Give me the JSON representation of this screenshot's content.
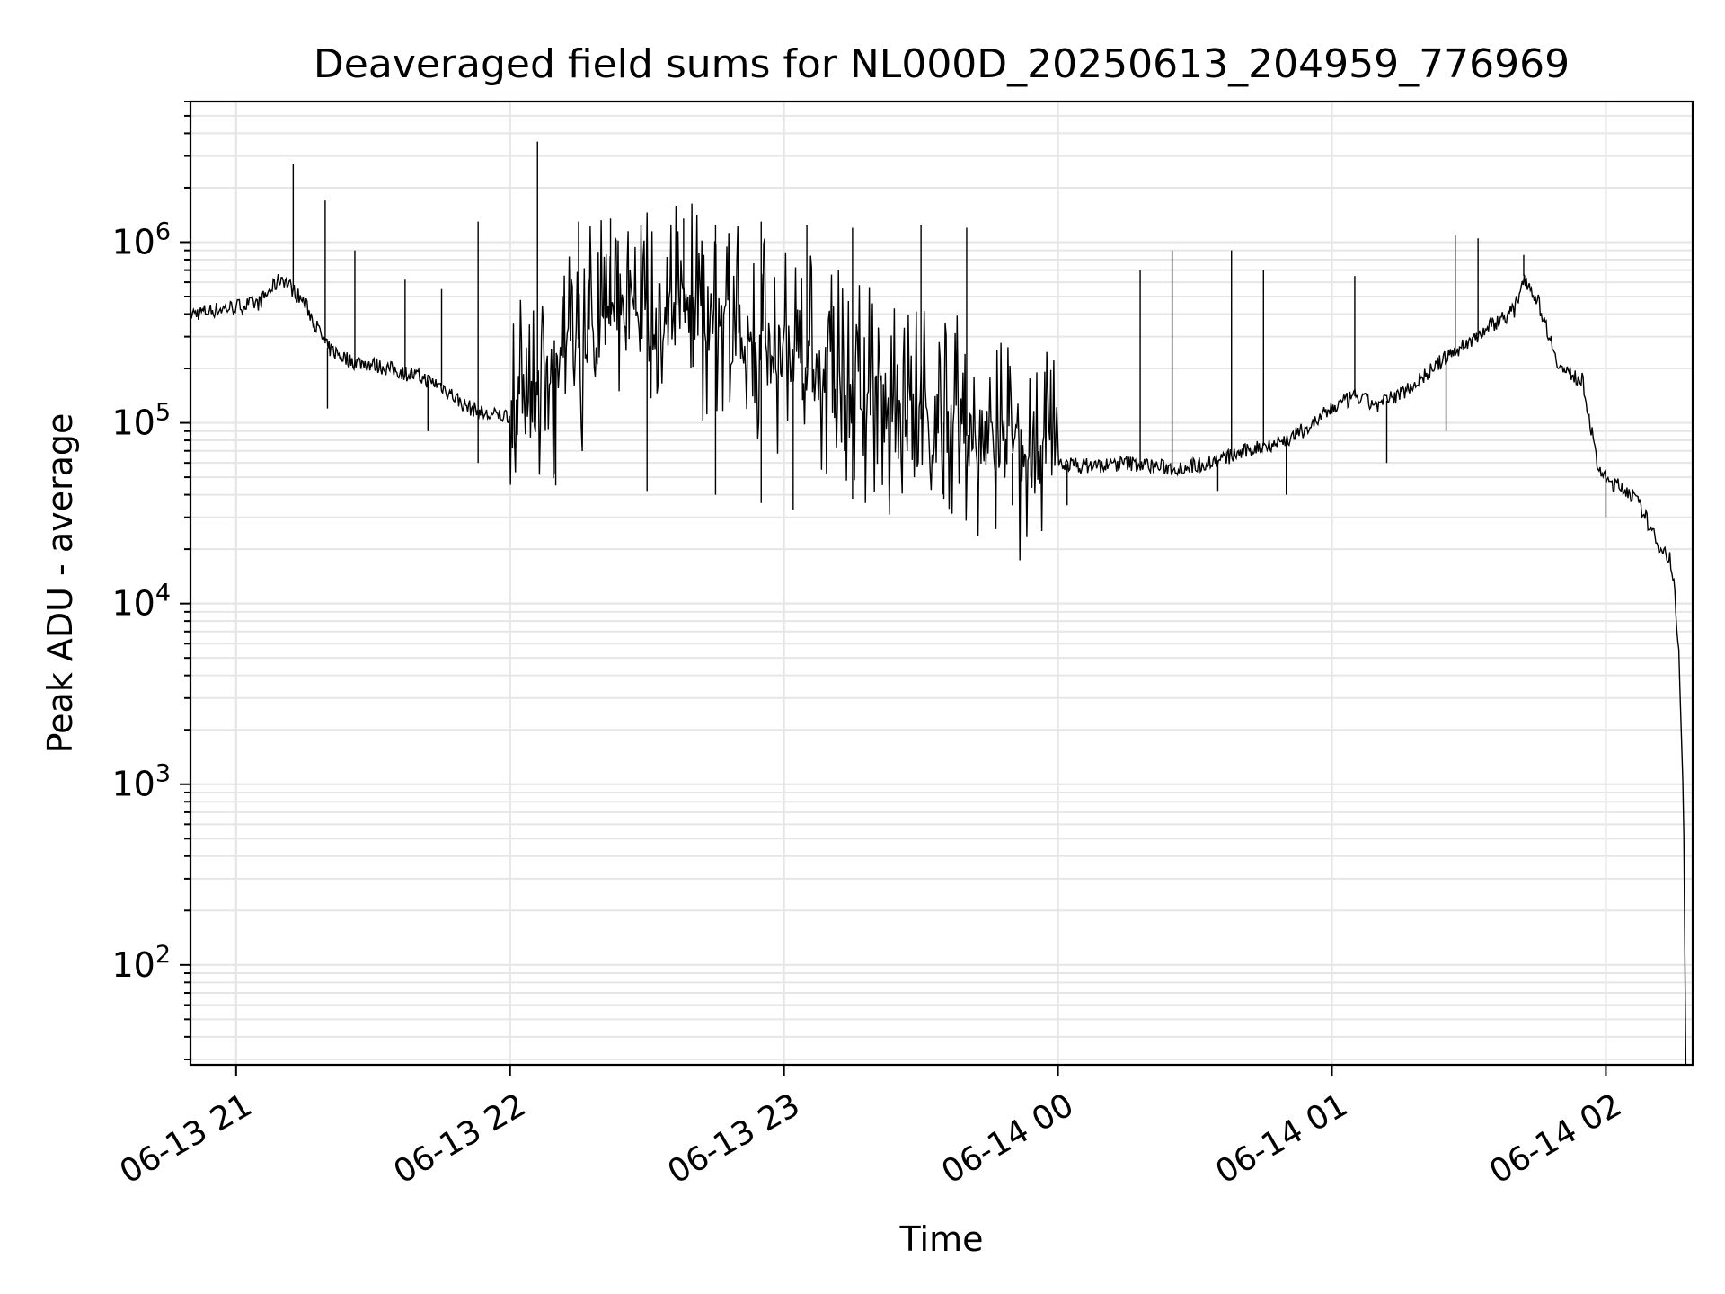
{
  "chart_data": {
    "type": "line",
    "title": "Deaveraged field sums for NL000D_20250613_204959_776969",
    "xlabel": "Time",
    "ylabel": "Peak ADU - average",
    "yscale": "log",
    "ylim": [
      28,
      6000000
    ],
    "xlim": [
      "2025-06-13 20:50:00",
      "2025-06-14 02:19:00"
    ],
    "grid": true,
    "line_color": "#000000",
    "grid_color": "#e6e6e6",
    "xticks": [
      {
        "t": "2025-06-13 21:00:00",
        "label": "06-13 21"
      },
      {
        "t": "2025-06-13 22:00:00",
        "label": "06-13 22"
      },
      {
        "t": "2025-06-13 23:00:00",
        "label": "06-13 23"
      },
      {
        "t": "2025-06-14 00:00:00",
        "label": "06-14 00"
      },
      {
        "t": "2025-06-14 01:00:00",
        "label": "06-14 01"
      },
      {
        "t": "2025-06-14 02:00:00",
        "label": "06-14 02"
      }
    ],
    "yticks": [
      {
        "value": 100,
        "base": "10",
        "exp": "2"
      },
      {
        "value": 1000,
        "base": "10",
        "exp": "3"
      },
      {
        "value": 10000,
        "base": "10",
        "exp": "4"
      },
      {
        "value": 100000,
        "base": "10",
        "exp": "5"
      },
      {
        "value": 1000000,
        "base": "10",
        "exp": "6"
      }
    ],
    "series": [
      {
        "points": [
          [
            "2025-06-13 20:50:00",
            400000
          ],
          [
            "2025-06-13 20:55:00",
            420000
          ],
          [
            "2025-06-13 21:00:00",
            440000
          ],
          [
            "2025-06-13 21:05:00",
            460000
          ],
          [
            "2025-06-13 21:10:00",
            640000
          ],
          [
            "2025-06-13 21:15:00",
            460000
          ],
          [
            "2025-06-13 21:20:00",
            260000
          ],
          [
            "2025-06-13 21:25:00",
            220000
          ],
          [
            "2025-06-13 21:30:00",
            210000
          ],
          [
            "2025-06-13 21:35:00",
            195000
          ],
          [
            "2025-06-13 21:40:00",
            180000
          ],
          [
            "2025-06-13 21:45:00",
            160000
          ],
          [
            "2025-06-13 21:50:00",
            125000
          ],
          [
            "2025-06-13 21:55:00",
            110000
          ],
          [
            "2025-06-13 22:00:00",
            110000
          ],
          [
            "2025-06-13 22:05:00",
            130000
          ],
          [
            "2025-06-13 22:10:00",
            200000
          ],
          [
            "2025-06-13 22:15:00",
            260000
          ],
          [
            "2025-06-13 22:20:00",
            320000
          ],
          [
            "2025-06-13 22:25:00",
            380000
          ],
          [
            "2025-06-13 22:30:00",
            380000
          ],
          [
            "2025-06-13 22:35:00",
            400000
          ],
          [
            "2025-06-13 22:40:00",
            420000
          ],
          [
            "2025-06-13 22:45:00",
            350000
          ],
          [
            "2025-06-13 22:50:00",
            300000
          ],
          [
            "2025-06-13 22:55:00",
            260000
          ],
          [
            "2025-06-13 23:00:00",
            230000
          ],
          [
            "2025-06-13 23:05:00",
            200000
          ],
          [
            "2025-06-13 23:10:00",
            170000
          ],
          [
            "2025-06-13 23:15:00",
            150000
          ],
          [
            "2025-06-13 23:20:00",
            130000
          ],
          [
            "2025-06-13 23:25:00",
            115000
          ],
          [
            "2025-06-13 23:30:00",
            105000
          ],
          [
            "2025-06-13 23:35:00",
            100000
          ],
          [
            "2025-06-13 23:40:00",
            85000
          ],
          [
            "2025-06-13 23:45:00",
            75000
          ],
          [
            "2025-06-13 23:50:00",
            68000
          ],
          [
            "2025-06-13 23:55:00",
            63000
          ],
          [
            "2025-06-14 00:00:00",
            60000
          ],
          [
            "2025-06-14 00:05:00",
            58000
          ],
          [
            "2025-06-14 00:10:00",
            58000
          ],
          [
            "2025-06-14 00:15:00",
            60000
          ],
          [
            "2025-06-14 00:20:00",
            58000
          ],
          [
            "2025-06-14 00:25:00",
            56000
          ],
          [
            "2025-06-14 00:30:00",
            58000
          ],
          [
            "2025-06-14 00:35:00",
            62000
          ],
          [
            "2025-06-14 00:40:00",
            68000
          ],
          [
            "2025-06-14 00:45:00",
            75000
          ],
          [
            "2025-06-14 00:50:00",
            80000
          ],
          [
            "2025-06-14 00:55:00",
            95000
          ],
          [
            "2025-06-14 01:00:00",
            120000
          ],
          [
            "2025-06-14 01:05:00",
            140000
          ],
          [
            "2025-06-14 01:10:00",
            125000
          ],
          [
            "2025-06-14 01:15:00",
            145000
          ],
          [
            "2025-06-14 01:20:00",
            180000
          ],
          [
            "2025-06-14 01:25:00",
            230000
          ],
          [
            "2025-06-14 01:30:00",
            280000
          ],
          [
            "2025-06-14 01:35:00",
            350000
          ],
          [
            "2025-06-14 01:40:00",
            420000
          ],
          [
            "2025-06-14 01:42:00",
            650000
          ],
          [
            "2025-06-14 01:45:00",
            480000
          ],
          [
            "2025-06-14 01:50:00",
            200000
          ],
          [
            "2025-06-14 01:55:00",
            170000
          ],
          [
            "2025-06-14 01:58:00",
            60000
          ],
          [
            "2025-06-14 02:00:00",
            48000
          ],
          [
            "2025-06-14 02:05:00",
            42000
          ],
          [
            "2025-06-14 02:08:00",
            33000
          ],
          [
            "2025-06-14 02:11:00",
            22000
          ],
          [
            "2025-06-14 02:14:00",
            18000
          ],
          [
            "2025-06-14 02:15:00",
            12000
          ],
          [
            "2025-06-14 02:16:00",
            5000
          ],
          [
            "2025-06-14 02:17:00",
            800
          ],
          [
            "2025-06-14 02:17:30",
            28
          ]
        ],
        "spikes": [
          [
            "2025-06-13 21:12:30",
            2700000
          ],
          [
            "2025-06-13 21:19:30",
            1700000
          ],
          [
            "2025-06-13 21:26:00",
            900000
          ],
          [
            "2025-06-13 21:37:00",
            620000
          ],
          [
            "2025-06-13 21:45:00",
            550000
          ],
          [
            "2025-06-13 21:53:00",
            1300000
          ],
          [
            "2025-06-13 22:06:00",
            3600000
          ],
          [
            "2025-06-13 22:15:00",
            1300000
          ],
          [
            "2025-06-13 22:22:00",
            1350000
          ],
          [
            "2025-06-13 22:30:00",
            1350000
          ],
          [
            "2025-06-13 22:38:00",
            1350000
          ],
          [
            "2025-06-13 22:45:00",
            1250000
          ],
          [
            "2025-06-13 22:55:00",
            1300000
          ],
          [
            "2025-06-13 23:05:00",
            1250000
          ],
          [
            "2025-06-13 23:15:00",
            1200000
          ],
          [
            "2025-06-13 23:30:00",
            1250000
          ],
          [
            "2025-06-13 23:40:00",
            1200000
          ],
          [
            "2025-06-14 00:18:00",
            700000
          ],
          [
            "2025-06-14 00:25:00",
            900000
          ],
          [
            "2025-06-14 00:38:00",
            900000
          ],
          [
            "2025-06-14 00:45:00",
            700000
          ],
          [
            "2025-06-14 01:05:00",
            650000
          ],
          [
            "2025-06-14 01:27:00",
            1100000
          ],
          [
            "2025-06-14 01:32:00",
            1050000
          ],
          [
            "2025-06-14 01:42:00",
            850000
          ]
        ],
        "dips": [
          [
            "2025-06-13 21:20:00",
            120000
          ],
          [
            "2025-06-13 21:42:00",
            90000
          ],
          [
            "2025-06-13 21:53:00",
            60000
          ],
          [
            "2025-06-13 22:10:00",
            45000
          ],
          [
            "2025-06-13 22:30:00",
            42000
          ],
          [
            "2025-06-13 22:45:00",
            40000
          ],
          [
            "2025-06-13 22:55:00",
            36000
          ],
          [
            "2025-06-13 23:02:00",
            33000
          ],
          [
            "2025-06-13 23:15:00",
            38000
          ],
          [
            "2025-06-13 23:35:00",
            38000
          ],
          [
            "2025-06-13 23:50:00",
            35000
          ],
          [
            "2025-06-14 00:02:00",
            35000
          ],
          [
            "2025-06-14 00:35:00",
            42000
          ],
          [
            "2025-06-14 00:50:00",
            40000
          ],
          [
            "2025-06-14 01:12:00",
            60000
          ],
          [
            "2025-06-14 01:25:00",
            90000
          ],
          [
            "2025-06-14 02:00:00",
            30000
          ]
        ]
      }
    ]
  }
}
